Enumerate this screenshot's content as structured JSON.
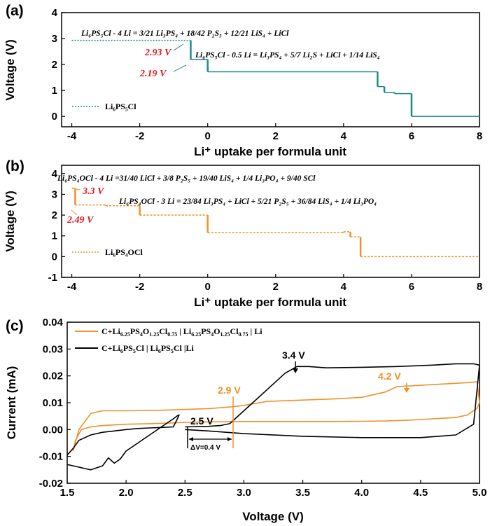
{
  "colors": {
    "teal": "#1a8a8a",
    "orange": "#f0912a",
    "black": "#000000",
    "red": "#e3161f"
  },
  "chart_data": [
    {
      "panel": "(a)",
      "type": "line",
      "xlabel": "Li⁺ uptake per formula unit",
      "ylabel": "Voltage (V)",
      "xlim": [
        -4.3,
        8
      ],
      "ylim": [
        -0.4,
        4
      ],
      "xticks": [
        "-4",
        "-2",
        "0",
        "2",
        "4",
        "6",
        "8"
      ],
      "yticks": [
        "0",
        "1",
        "2",
        "3",
        "4"
      ],
      "legend": "Li₆PS₅Cl",
      "series": [
        {
          "name": "Li₆PS₅Cl",
          "segments": [
            {
              "x": [
                -4,
                -0.5
              ],
              "y": 2.93
            },
            {
              "x": [
                -0.5,
                0
              ],
              "y": 2.19
            },
            {
              "x": [
                0,
                5.0
              ],
              "y": 1.72
            },
            {
              "x": [
                5.0,
                5.2
              ],
              "y": 1.15
            },
            {
              "x": [
                5.2,
                5.5
              ],
              "y": 0.92
            },
            {
              "x": [
                5.5,
                6.0
              ],
              "y": 0.88
            },
            {
              "x": [
                6.0,
                8.0
              ],
              "y": 0.0
            }
          ]
        }
      ],
      "annotations": [
        {
          "text": "Li₆PS₅Cl - 4 Li  = 3/21 Li₃PS₄ + 18/42 P₂S₅ + 12/21 LiS₄ + LiCl"
        },
        {
          "text": "Li₆PS₅Cl - 0.5 Li  = Li₃PS₄ + 5/7 Li₂S + LiCl + 1/14 LiS₄"
        },
        {
          "text": "2.93 V"
        },
        {
          "text": "2.19 V"
        }
      ]
    },
    {
      "panel": "(b)",
      "type": "line",
      "xlabel": "Li⁺ uptake per formula unit",
      "ylabel": "Voltage (V)",
      "xlim": [
        -4.3,
        8
      ],
      "ylim": [
        -1,
        4.4
      ],
      "xticks": [
        "-4",
        "-2",
        "0",
        "2",
        "4",
        "6",
        "8"
      ],
      "yticks": [
        "-1",
        "0",
        "1",
        "2",
        "3",
        "4"
      ],
      "legend": "Li₆PS₄OCl",
      "series": [
        {
          "name": "Li₆PS₄OCl",
          "segments": [
            {
              "x": [
                -4,
                -3.9
              ],
              "y": 3.3
            },
            {
              "x": [
                -3.9,
                -3.0
              ],
              "y": 2.49
            },
            {
              "x": [
                -3.0,
                -2.0
              ],
              "y": 2.45
            },
            {
              "x": [
                -2.0,
                0.0
              ],
              "y": 2.0
            },
            {
              "x": [
                0.0,
                4.0
              ],
              "y": 1.15
            },
            {
              "x": [
                4.0,
                4.2
              ],
              "y": 1.2
            },
            {
              "x": [
                4.2,
                4.5
              ],
              "y": 0.95
            },
            {
              "x": [
                4.5,
                8.0
              ],
              "y": 0.0
            }
          ]
        }
      ],
      "annotations": [
        {
          "text": "Li₆PS₄OCl - 4 Li =31/40 LiCl + 3/8 P₂S₅ + 19/40 LiS₄ + 1/4 Li₃PO₄ + 9/40 SCl"
        },
        {
          "text": "Li₆PS₄OCl - 3 Li  = 23/84 Li₃PS₄ + LiCl + 5/21 P₂S₅ + 36/84 LiS₄ + 1/4 Li₃PO₄"
        },
        {
          "text": "3.3 V"
        },
        {
          "text": "2.49 V"
        }
      ]
    },
    {
      "panel": "(c)",
      "type": "line",
      "xlabel": "Voltage (V)",
      "ylabel": "Current (mA)",
      "xlim": [
        1.5,
        5.0
      ],
      "ylim": [
        -0.02,
        0.04
      ],
      "xticks": [
        "1.5",
        "2.0",
        "2.5",
        "3.0",
        "3.5",
        "4.0",
        "4.5",
        "5.0"
      ],
      "yticks": [
        "-0.02",
        "-0.01",
        "0.00",
        "0.01",
        "0.02",
        "0.03",
        "0.04"
      ],
      "series": [
        {
          "name": "C+Li6.25PS4O1.25Cl0.75 | Li6.25PS4O1.25Cl0.75 | Li",
          "x": [
            1.55,
            1.6,
            1.7,
            1.8,
            2.0,
            2.3,
            2.5,
            2.7,
            2.9,
            3.0,
            3.2,
            3.5,
            3.8,
            4.0,
            4.2,
            4.3,
            4.5,
            4.7,
            4.9,
            4.98,
            5.0,
            4.98,
            4.9,
            4.8,
            4.6,
            4.4,
            4.2,
            4.0,
            3.8,
            3.5,
            3.2,
            3.0,
            2.8,
            2.6,
            2.5,
            2.4,
            2.2,
            2.0,
            1.8,
            1.7,
            1.62,
            1.57,
            1.55
          ],
          "y": [
            -0.008,
            0.0,
            0.006,
            0.007,
            0.007,
            0.0072,
            0.0075,
            0.0078,
            0.0085,
            0.009,
            0.0105,
            0.011,
            0.0115,
            0.012,
            0.014,
            0.016,
            0.0165,
            0.017,
            0.0175,
            0.0178,
            0.01,
            0.008,
            0.0055,
            0.0045,
            0.004,
            0.0035,
            0.0032,
            0.0031,
            0.003,
            0.003,
            0.003,
            0.003,
            0.0029,
            0.0028,
            0.0027,
            0.0025,
            0.0022,
            0.002,
            0.0015,
            0.001,
            0.0,
            -0.004,
            -0.008
          ]
        },
        {
          "name": "C+Li6PS5Cl | Li6PS5Cl |Li",
          "x": [
            1.5,
            1.55,
            1.6,
            1.7,
            1.8,
            1.85,
            1.9,
            1.95,
            2.0,
            2.1,
            2.2,
            2.3,
            2.4,
            2.43,
            2.45,
            2.43,
            2.4,
            2.3,
            2.2,
            2.1,
            2.0,
            1.9,
            1.8,
            1.7,
            1.6,
            1.55,
            1.5
          ],
          "y": [
            -0.013,
            -0.0135,
            -0.014,
            -0.015,
            -0.0135,
            -0.0105,
            -0.0125,
            -0.011,
            -0.008,
            -0.005,
            -0.002,
            0.001,
            0.004,
            0.005,
            0.0055,
            0.0035,
            0.001,
            0.0008,
            0.0006,
            0.0004,
            0.0,
            -0.0005,
            -0.001,
            -0.002,
            -0.004,
            -0.007,
            -0.0095
          ]
        },
        {
          "name": "C+Li6PS5Cl | Li6PS5Cl |Li (high voltage)",
          "x": [
            2.5,
            2.7,
            2.8,
            2.88,
            3.0,
            3.2,
            3.35,
            3.45,
            3.55,
            3.7,
            4.0,
            4.3,
            4.6,
            4.8,
            4.95,
            5.0,
            4.95,
            4.8,
            4.5,
            4.0,
            3.5,
            3.0,
            2.7,
            2.5
          ],
          "y": [
            0.001,
            0.0012,
            0.0015,
            0.0022,
            0.007,
            0.015,
            0.021,
            0.0235,
            0.0235,
            0.023,
            0.0232,
            0.0235,
            0.024,
            0.0245,
            0.0245,
            0.024,
            0.002,
            -0.002,
            -0.003,
            -0.003,
            -0.0025,
            -0.0015,
            -0.0005,
            0.0
          ]
        }
      ],
      "legend_entries": [
        {
          "main": "C+Li",
          "s1": "6.25",
          "t1": "PS",
          "s2": "4",
          "t2": "O",
          "s3": "1.25",
          "t3": "Cl",
          "s4": "0.75",
          "sep1": " | Li",
          "s5": "6.25",
          "t5": "PS",
          "s6": "4",
          "t6": "O",
          "s7": "1.25",
          "t7": "Cl",
          "s8": "0.75",
          "end": " | Li"
        },
        {
          "main": "C+Li",
          "s1": "6",
          "t1": "PS",
          "s2": "5",
          "t2": "Cl | Li",
          "s3": "6",
          "t3": "PS",
          "s4": "5",
          "end": "Cl |Li"
        }
      ],
      "annotations": [
        {
          "text": "3.4 V"
        },
        {
          "text": "4.2 V"
        },
        {
          "text": "2.9 V"
        },
        {
          "text": "2.5 V"
        },
        {
          "text": "ΔV=0.4 V"
        }
      ]
    }
  ]
}
